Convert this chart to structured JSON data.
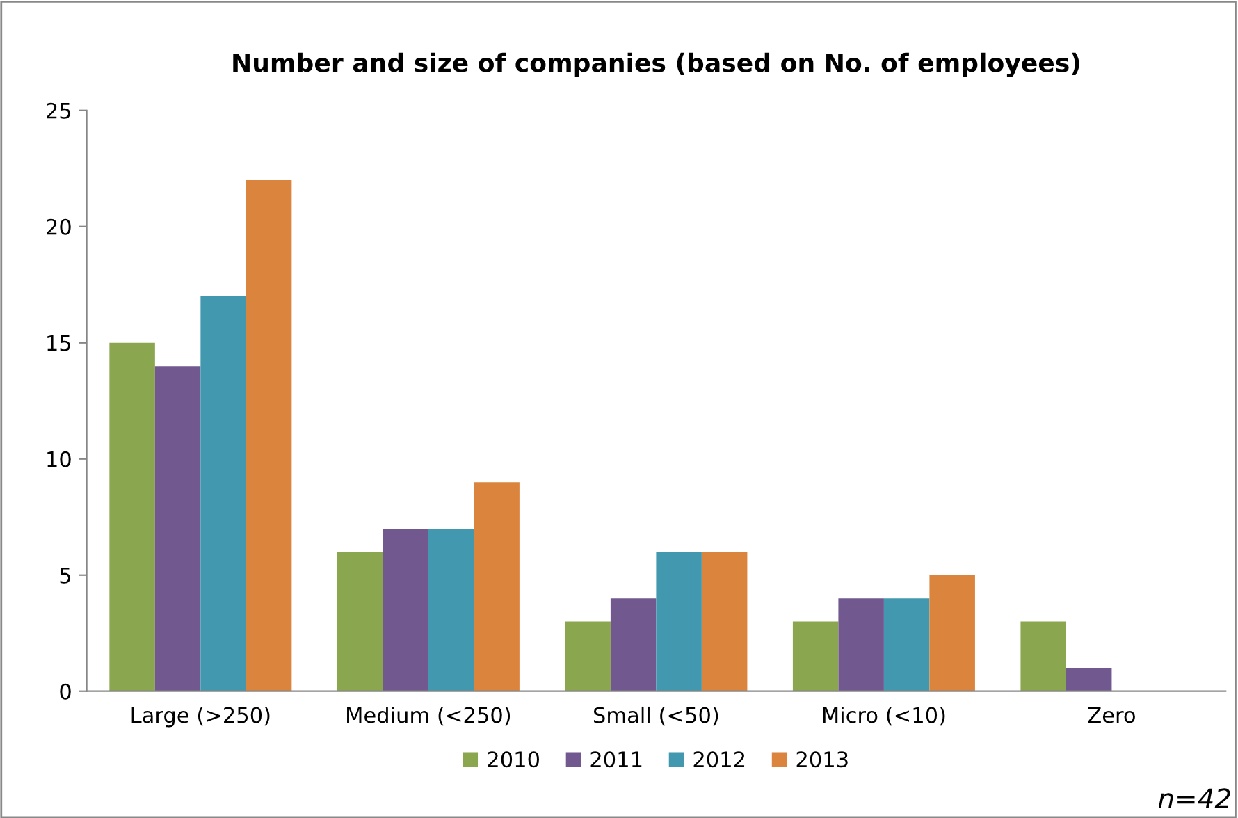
{
  "chart_data": {
    "type": "bar",
    "title": "Number and size of companies (based on No. of employees)",
    "categories": [
      "Large (>250)",
      "Medium (<250)",
      "Small (<50)",
      "Micro (<10)",
      "Zero"
    ],
    "series": [
      {
        "name": "2010",
        "color": "#8aa64e",
        "values": [
          15,
          6,
          3,
          3,
          3
        ]
      },
      {
        "name": "2011",
        "color": "#71588f",
        "values": [
          14,
          7,
          4,
          4,
          1
        ]
      },
      {
        "name": "2012",
        "color": "#4198af",
        "values": [
          17,
          7,
          6,
          4,
          0
        ]
      },
      {
        "name": "2013",
        "color": "#db843d",
        "values": [
          22,
          9,
          6,
          5,
          0
        ]
      }
    ],
    "ylim": [
      0,
      25
    ],
    "yticks": [
      0,
      5,
      10,
      15,
      20,
      25
    ],
    "grid": false,
    "legend": "bottom",
    "annotations": [
      "n=42"
    ]
  }
}
